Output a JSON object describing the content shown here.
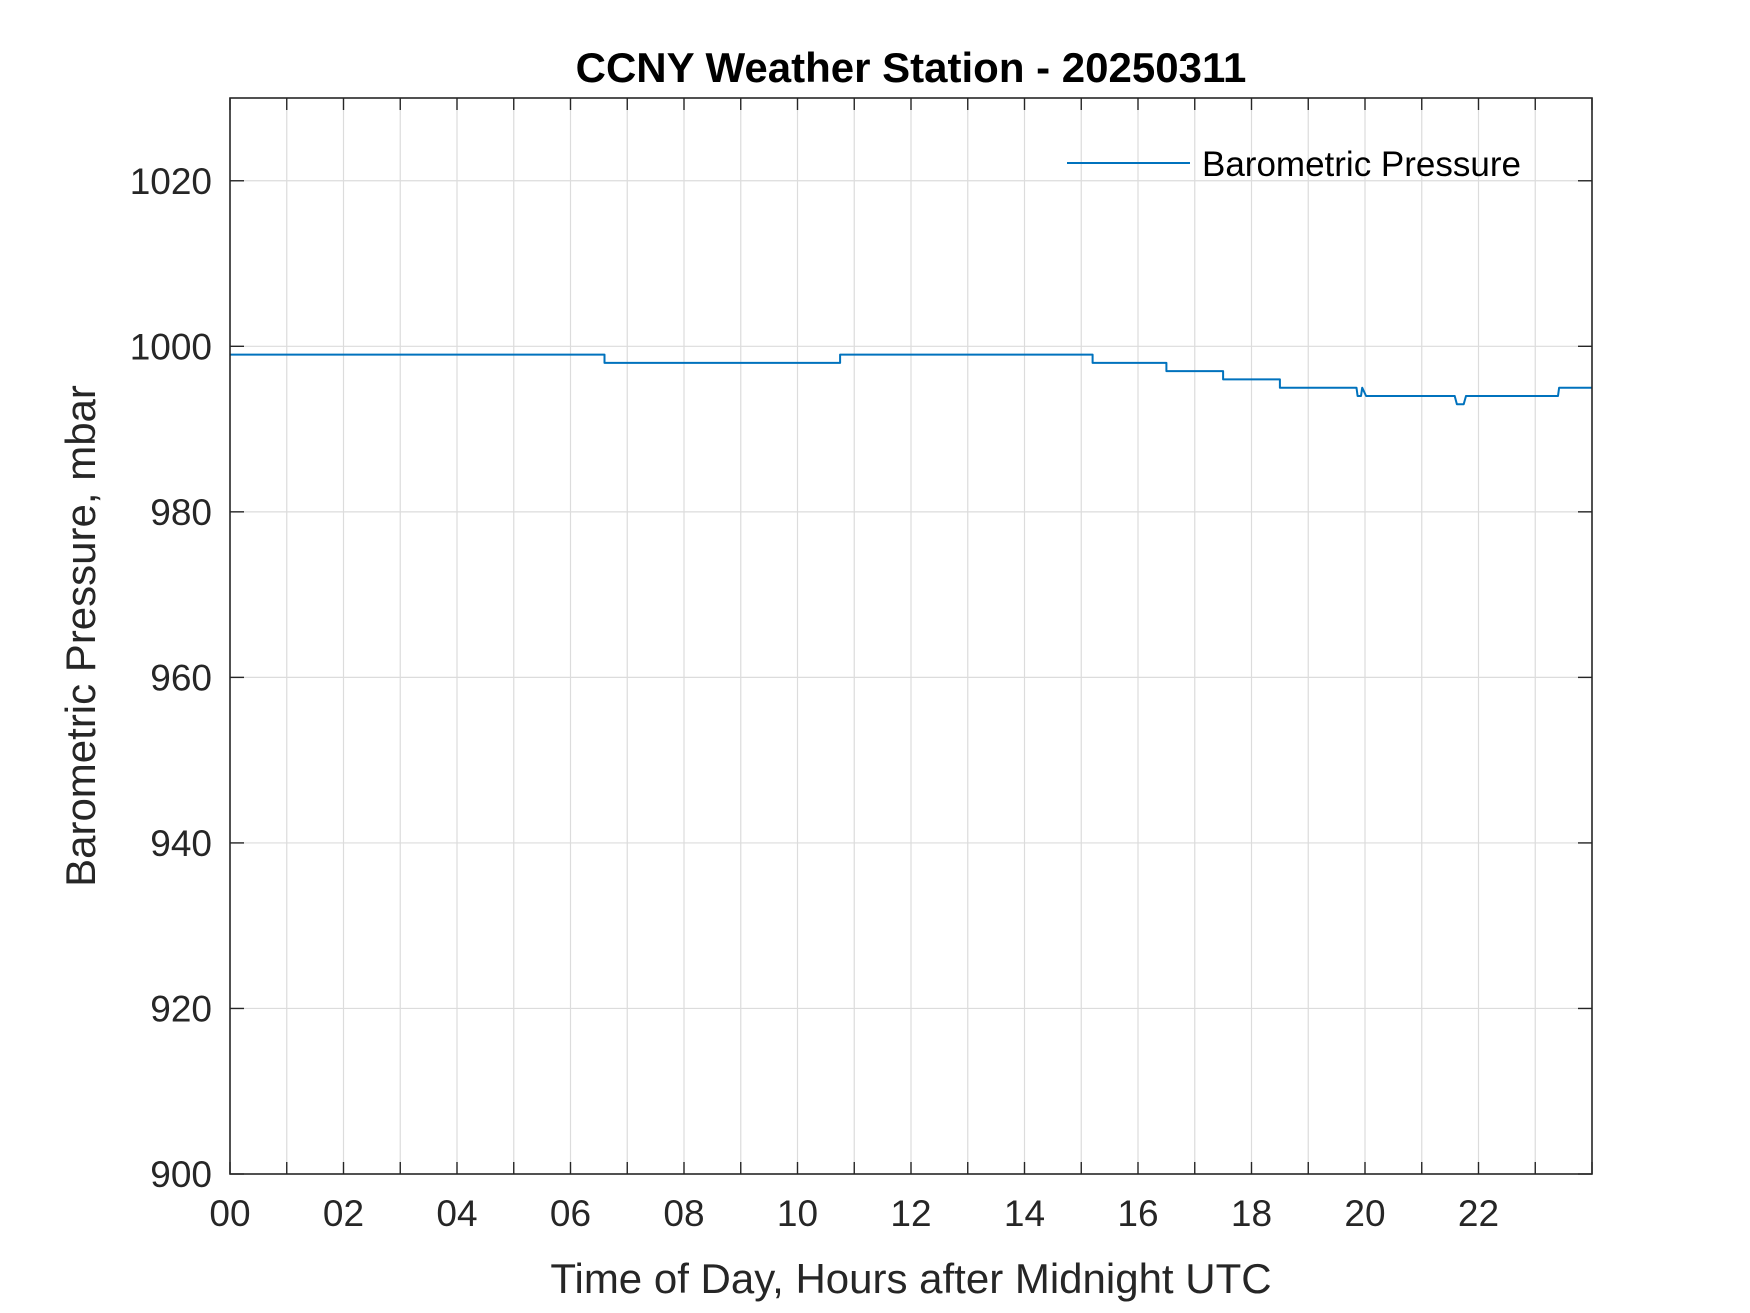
{
  "chart_data": {
    "type": "line",
    "title": "CCNY Weather Station - 20250311",
    "xlabel": "Time of Day, Hours after Midnight UTC",
    "ylabel": "Barometric Pressure, mbar",
    "xlim": [
      0,
      24
    ],
    "ylim": [
      900,
      1030
    ],
    "x_ticks": [
      "00",
      "02",
      "04",
      "06",
      "08",
      "10",
      "12",
      "14",
      "16",
      "18",
      "20",
      "22"
    ],
    "x_tick_values": [
      0,
      2,
      4,
      6,
      8,
      10,
      12,
      14,
      16,
      18,
      20,
      22
    ],
    "x_minor_grid_step": 1,
    "y_ticks": [
      900,
      920,
      940,
      960,
      980,
      1000,
      1020
    ],
    "grid": true,
    "legend_position": "top-right",
    "series": [
      {
        "name": "Barometric Pressure",
        "color": "#0072BD",
        "x": [
          0,
          6.6,
          6.6,
          10.75,
          10.75,
          15.2,
          15.2,
          16.5,
          16.5,
          17.5,
          17.5,
          18.5,
          18.5,
          19.85,
          19.87,
          19.93,
          19.95,
          20.02,
          21.58,
          21.62,
          21.74,
          21.78,
          23.4,
          23.42,
          24
        ],
        "y": [
          999,
          999,
          998,
          998,
          999,
          999,
          998,
          998,
          997,
          997,
          996,
          996,
          995,
          995,
          994,
          994,
          995,
          994,
          994,
          993,
          993,
          994,
          994,
          995,
          995
        ]
      }
    ]
  }
}
